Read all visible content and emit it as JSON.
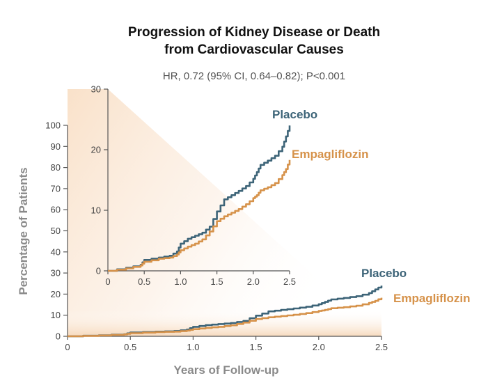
{
  "chart_data": {
    "type": "line",
    "title_line1": "Progression of Kidney Disease or Death",
    "title_line2": "from Cardiovascular Causes",
    "subtitle": "HR, 0.72 (95% CI, 0.64–0.82); P<0.001",
    "xlabel": "Years of Follow-up",
    "ylabel": "Percentage of Patients",
    "colors": {
      "placebo": "#3d6478",
      "empagliflozin": "#d6924a"
    },
    "main": {
      "xlim": [
        0,
        2.5
      ],
      "ylim": [
        0,
        100
      ],
      "x_ticks": [
        "0",
        "0.5",
        "1.0",
        "1.5",
        "2.0",
        "2.5"
      ],
      "y_ticks": [
        "0",
        "10",
        "20",
        "30",
        "40",
        "50",
        "60",
        "70",
        "80",
        "90",
        "100"
      ],
      "series_labels": [
        "Placebo",
        "Empagliflozin"
      ]
    },
    "inset": {
      "xlim": [
        0,
        2.5
      ],
      "ylim": [
        0,
        30
      ],
      "x_ticks": [
        "0",
        "0.5",
        "1.0",
        "1.5",
        "2.0",
        "2.5"
      ],
      "y_ticks": [
        "0",
        "10",
        "20",
        "30"
      ],
      "series_labels": [
        "Placebo",
        "Empagliflozin"
      ]
    },
    "series": [
      {
        "name": "Placebo",
        "x": [
          0,
          0.25,
          0.45,
          0.5,
          0.7,
          0.85,
          0.95,
          1.0,
          1.1,
          1.2,
          1.3,
          1.4,
          1.5,
          1.6,
          1.7,
          1.8,
          1.9,
          2.0,
          2.05,
          2.1,
          2.2,
          2.3,
          2.4,
          2.45,
          2.5
        ],
        "y": [
          0,
          0.5,
          1.0,
          1.8,
          2.2,
          2.5,
          3.2,
          4.5,
          5.3,
          5.8,
          6.3,
          7.3,
          9.8,
          11.8,
          12.5,
          13.2,
          14.0,
          15.2,
          16.3,
          17.5,
          18.2,
          19.0,
          20.5,
          22.2,
          24.0
        ]
      },
      {
        "name": "Empagliflozin",
        "x": [
          0,
          0.25,
          0.45,
          0.5,
          0.7,
          0.85,
          0.95,
          1.0,
          1.1,
          1.2,
          1.3,
          1.4,
          1.5,
          1.6,
          1.7,
          1.8,
          1.9,
          2.0,
          2.05,
          2.1,
          2.2,
          2.3,
          2.4,
          2.45,
          2.5
        ],
        "y": [
          0,
          0.4,
          0.9,
          1.5,
          2.0,
          2.2,
          2.7,
          3.4,
          4.0,
          4.5,
          5.2,
          6.5,
          8.2,
          9.0,
          9.6,
          10.2,
          11.0,
          12.0,
          12.5,
          13.3,
          13.8,
          14.5,
          15.8,
          16.8,
          18.3
        ]
      }
    ]
  }
}
